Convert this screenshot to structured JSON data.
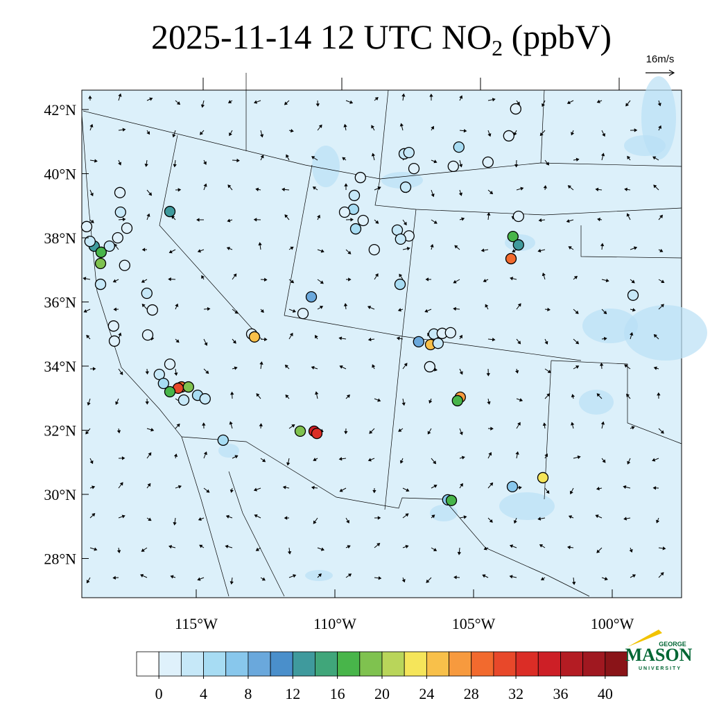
{
  "title": {
    "main": "2025-11-14 12 UTC NO",
    "subscript": "2",
    "suffix": " (ppbV)"
  },
  "wind_reference": "16m/s",
  "map": {
    "lat_labels": [
      {
        "value": 42,
        "label": "42°N"
      },
      {
        "value": 40,
        "label": "40°N"
      },
      {
        "value": 38,
        "label": "38°N"
      },
      {
        "value": 36,
        "label": "36°N"
      },
      {
        "value": 34,
        "label": "34°N"
      },
      {
        "value": 32,
        "label": "32°N"
      },
      {
        "value": 30,
        "label": "30°N"
      },
      {
        "value": 28,
        "label": "28°N"
      }
    ],
    "lon_labels": [
      {
        "value": -115,
        "label": "115°W"
      },
      {
        "value": -110,
        "label": "110°W"
      },
      {
        "value": -105,
        "label": "105°W"
      },
      {
        "value": -100,
        "label": "100°W"
      }
    ]
  },
  "colorbar": {
    "levels": [
      0,
      2,
      4,
      6,
      8,
      10,
      12,
      14,
      16,
      18,
      20,
      22,
      24,
      26,
      28,
      30,
      32,
      34,
      36,
      38,
      40
    ],
    "ticks": [
      0,
      4,
      8,
      12,
      16,
      20,
      24,
      28,
      32,
      36,
      40
    ],
    "colors": [
      "#ffffff",
      "#dff1fb",
      "#c6e8f8",
      "#a7dcf3",
      "#88c7ec",
      "#6aa8dc",
      "#4a8fcb",
      "#3f9a9d",
      "#40a67a",
      "#48b54a",
      "#7fc24f",
      "#b9d55a",
      "#f5e55a",
      "#f8c04a",
      "#f79a3e",
      "#f26a2e",
      "#e8482a",
      "#db2d26",
      "#cd1f26",
      "#b41c23",
      "#a01820",
      "#8a1418"
    ]
  },
  "stations": [
    {
      "lon": -118.95,
      "lat": 38.35,
      "value": 1
    },
    {
      "lon": -118.68,
      "lat": 37.74,
      "value": 13
    },
    {
      "lon": -118.83,
      "lat": 37.89,
      "value": 3
    },
    {
      "lon": -118.43,
      "lat": 37.55,
      "value": 17
    },
    {
      "lon": -118.45,
      "lat": 37.2,
      "value": 19
    },
    {
      "lon": -118.13,
      "lat": 37.74,
      "value": 3
    },
    {
      "lon": -117.83,
      "lat": 38.0,
      "value": 1
    },
    {
      "lon": -117.75,
      "lat": 39.41,
      "value": 1
    },
    {
      "lon": -117.73,
      "lat": 38.8,
      "value": 3
    },
    {
      "lon": -117.5,
      "lat": 38.3,
      "value": 1
    },
    {
      "lon": -117.58,
      "lat": 37.14,
      "value": 1
    },
    {
      "lon": -118.45,
      "lat": 36.55,
      "value": 3
    },
    {
      "lon": -116.78,
      "lat": 36.27,
      "value": 3
    },
    {
      "lon": -116.58,
      "lat": 35.75,
      "value": 1
    },
    {
      "lon": -117.98,
      "lat": 35.25,
      "value": 1
    },
    {
      "lon": -117.95,
      "lat": 34.78,
      "value": 1
    },
    {
      "lon": -116.75,
      "lat": 34.97,
      "value": 1
    },
    {
      "lon": -115.95,
      "lat": 38.82,
      "value": 13
    },
    {
      "lon": -116.33,
      "lat": 33.74,
      "value": 3
    },
    {
      "lon": -116.18,
      "lat": 33.46,
      "value": 5
    },
    {
      "lon": -115.95,
      "lat": 34.06,
      "value": 1
    },
    {
      "lon": -115.53,
      "lat": 33.35,
      "value": 29
    },
    {
      "lon": -115.65,
      "lat": 33.31,
      "value": 31
    },
    {
      "lon": -115.28,
      "lat": 33.35,
      "value": 19
    },
    {
      "lon": -115.95,
      "lat": 33.2,
      "value": 17
    },
    {
      "lon": -115.45,
      "lat": 32.94,
      "value": 3
    },
    {
      "lon": -114.95,
      "lat": 33.09,
      "value": 5
    },
    {
      "lon": -114.68,
      "lat": 32.98,
      "value": 3
    },
    {
      "lon": -114.03,
      "lat": 31.69,
      "value": 5
    },
    {
      "lon": -113.0,
      "lat": 35.0,
      "value": 1
    },
    {
      "lon": -112.9,
      "lat": 34.91,
      "value": 25
    },
    {
      "lon": -109.08,
      "lat": 39.88,
      "value": 1
    },
    {
      "lon": -109.3,
      "lat": 39.32,
      "value": 3
    },
    {
      "lon": -109.33,
      "lat": 38.89,
      "value": 5
    },
    {
      "lon": -109.25,
      "lat": 38.28,
      "value": 5
    },
    {
      "lon": -109.65,
      "lat": 38.8,
      "value": 1
    },
    {
      "lon": -108.98,
      "lat": 38.54,
      "value": 1
    },
    {
      "lon": -108.58,
      "lat": 37.63,
      "value": 1
    },
    {
      "lon": -110.85,
      "lat": 36.16,
      "value": 9
    },
    {
      "lon": -111.15,
      "lat": 35.64,
      "value": 1
    },
    {
      "lon": -107.5,
      "lat": 40.62,
      "value": 3
    },
    {
      "lon": -107.33,
      "lat": 40.66,
      "value": 3
    },
    {
      "lon": -107.15,
      "lat": 40.16,
      "value": 1
    },
    {
      "lon": -107.45,
      "lat": 39.58,
      "value": 3
    },
    {
      "lon": -105.73,
      "lat": 40.23,
      "value": 1
    },
    {
      "lon": -105.53,
      "lat": 40.83,
      "value": 5
    },
    {
      "lon": -104.48,
      "lat": 40.36,
      "value": 1
    },
    {
      "lon": -103.73,
      "lat": 41.18,
      "value": 1
    },
    {
      "lon": -103.48,
      "lat": 42.02,
      "value": 1
    },
    {
      "lon": -103.38,
      "lat": 38.67,
      "value": 1
    },
    {
      "lon": -107.75,
      "lat": 38.24,
      "value": 3
    },
    {
      "lon": -107.33,
      "lat": 38.06,
      "value": 1
    },
    {
      "lon": -107.63,
      "lat": 37.96,
      "value": 3
    },
    {
      "lon": -107.65,
      "lat": 36.55,
      "value": 5
    },
    {
      "lon": -103.58,
      "lat": 38.04,
      "value": 17
    },
    {
      "lon": -103.38,
      "lat": 37.78,
      "value": 13
    },
    {
      "lon": -103.65,
      "lat": 37.35,
      "value": 29
    },
    {
      "lon": -106.98,
      "lat": 34.76,
      "value": 9
    },
    {
      "lon": -106.43,
      "lat": 35.0,
      "value": 3
    },
    {
      "lon": -106.13,
      "lat": 35.02,
      "value": 1
    },
    {
      "lon": -105.83,
      "lat": 35.04,
      "value": 1
    },
    {
      "lon": -106.55,
      "lat": 34.67,
      "value": 25
    },
    {
      "lon": -106.28,
      "lat": 34.71,
      "value": 3
    },
    {
      "lon": -106.58,
      "lat": 33.98,
      "value": 1
    },
    {
      "lon": -105.48,
      "lat": 33.03,
      "value": 27
    },
    {
      "lon": -105.58,
      "lat": 32.92,
      "value": 17
    },
    {
      "lon": -111.25,
      "lat": 31.97,
      "value": 19
    },
    {
      "lon": -110.75,
      "lat": 31.97,
      "value": 35
    },
    {
      "lon": -110.65,
      "lat": 31.9,
      "value": 33
    },
    {
      "lon": -105.93,
      "lat": 29.83,
      "value": 7
    },
    {
      "lon": -105.8,
      "lat": 29.81,
      "value": 17
    },
    {
      "lon": -103.6,
      "lat": 30.24,
      "value": 7
    },
    {
      "lon": -102.5,
      "lat": 30.52,
      "value": 23
    },
    {
      "lon": -99.25,
      "lat": 36.21,
      "value": 3
    }
  ],
  "logo": {
    "top": "GEORGE",
    "name": "MASON",
    "bottom": "UNIVERSITY"
  }
}
